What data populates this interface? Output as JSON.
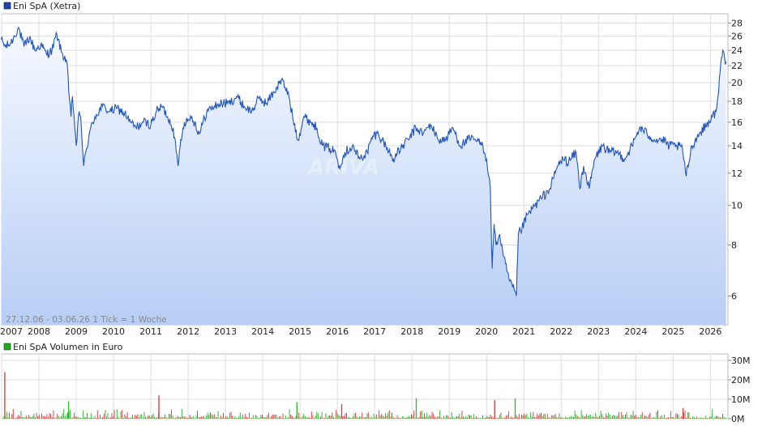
{
  "chart_data": [
    {
      "type": "line",
      "legend": "Eni SpA (Xetra)",
      "legend_color": "#2244aa",
      "line_color": "#2255bb",
      "fill_top": "#f6f9ff",
      "fill_bottom": "#b7cef5",
      "y_scale": "log",
      "ylim": [
        5.1,
        29.5
      ],
      "y_ticks": [
        "6",
        "8",
        "10",
        "12",
        "14",
        "16",
        "18",
        "20",
        "22",
        "24",
        "26",
        "28"
      ],
      "x_ticks": [
        "2007",
        "2008",
        "2009",
        "2010",
        "2011",
        "2012",
        "2013",
        "2014",
        "2015",
        "2016",
        "2017",
        "2018",
        "2019",
        "2020",
        "2021",
        "2022",
        "2023",
        "2024",
        "2025",
        "2026"
      ],
      "range_label": "27.12.06 - 03.06.26    1 Tick = 1 Woche",
      "grid": true,
      "x": [
        2006.99,
        2007.1,
        2007.25,
        2007.45,
        2007.6,
        2007.75,
        2007.9,
        2008.05,
        2008.2,
        2008.35,
        2008.48,
        2008.6,
        2008.75,
        2008.8,
        2008.86,
        2008.9,
        2009.0,
        2009.08,
        2009.12,
        2009.2,
        2009.35,
        2009.5,
        2009.7,
        2009.9,
        2010.1,
        2010.3,
        2010.45,
        2010.6,
        2010.8,
        2011.0,
        2011.15,
        2011.3,
        2011.45,
        2011.6,
        2011.68,
        2011.73,
        2011.8,
        2011.9,
        2012.1,
        2012.3,
        2012.5,
        2012.7,
        2012.9,
        2013.1,
        2013.3,
        2013.5,
        2013.7,
        2013.9,
        2014.1,
        2014.3,
        2014.5,
        2014.6,
        2014.7,
        2014.8,
        2014.95,
        2015.1,
        2015.3,
        2015.45,
        2015.6,
        2015.8,
        2015.95,
        2016.05,
        2016.2,
        2016.4,
        2016.6,
        2016.8,
        2016.95,
        2017.1,
        2017.3,
        2017.5,
        2017.7,
        2017.9,
        2018.1,
        2018.3,
        2018.5,
        2018.7,
        2018.9,
        2019.1,
        2019.3,
        2019.5,
        2019.7,
        2019.9,
        2020.0,
        2020.1,
        2020.15,
        2020.2,
        2020.25,
        2020.35,
        2020.45,
        2020.6,
        2020.7,
        2020.8,
        2020.85,
        2020.95,
        2021.1,
        2021.3,
        2021.5,
        2021.7,
        2021.9,
        2022.05,
        2022.2,
        2022.4,
        2022.5,
        2022.6,
        2022.75,
        2022.9,
        2023.1,
        2023.3,
        2023.5,
        2023.7,
        2023.9,
        2024.1,
        2024.3,
        2024.5,
        2024.7,
        2024.9,
        2025.1,
        2025.25,
        2025.35,
        2025.5,
        2025.7,
        2025.9,
        2026.05,
        2026.15,
        2026.22,
        2026.28,
        2026.33,
        2026.38,
        2026.42
      ],
      "values": [
        25.5,
        24.5,
        25.0,
        27.3,
        24.5,
        25.8,
        24.0,
        24.8,
        23.5,
        24.0,
        26.3,
        23.8,
        22.5,
        19.0,
        16.5,
        18.5,
        14.0,
        17.0,
        16.5,
        12.5,
        15.0,
        16.5,
        17.5,
        17.0,
        17.3,
        16.8,
        16.0,
        15.5,
        16.0,
        15.8,
        17.0,
        17.5,
        16.5,
        15.5,
        13.5,
        12.5,
        14.5,
        16.0,
        16.5,
        15.0,
        17.0,
        17.5,
        17.8,
        17.8,
        18.5,
        17.5,
        17.0,
        18.3,
        17.8,
        19.0,
        20.3,
        19.5,
        18.5,
        16.5,
        14.5,
        16.5,
        16.0,
        15.5,
        14.0,
        13.8,
        13.5,
        12.5,
        13.5,
        14.0,
        13.0,
        13.5,
        14.8,
        15.0,
        14.0,
        13.0,
        13.8,
        14.5,
        15.5,
        15.0,
        15.8,
        14.5,
        14.5,
        15.5,
        14.0,
        14.5,
        14.5,
        14.0,
        13.0,
        11.0,
        7.0,
        9.0,
        8.0,
        8.5,
        7.5,
        6.6,
        6.3,
        6.0,
        8.5,
        8.8,
        9.5,
        10.0,
        10.5,
        11.0,
        12.5,
        13.0,
        12.8,
        13.5,
        11.0,
        12.5,
        11.0,
        13.0,
        14.0,
        13.5,
        13.5,
        13.0,
        14.0,
        15.5,
        15.0,
        14.5,
        14.5,
        14.0,
        14.0,
        13.8,
        11.8,
        14.0,
        15.0,
        15.8,
        16.5,
        17.0,
        19.0,
        22.5,
        24.0,
        23.0,
        22.5
      ]
    },
    {
      "type": "bar",
      "legend": "Eni SpA Volumen in Euro",
      "legend_color": "#22aa22",
      "y_ticks": [
        "0M",
        "10M",
        "20M",
        "30M"
      ],
      "ylim": [
        0,
        30
      ],
      "spikes": [
        {
          "x": 2007.07,
          "value": 24.0
        },
        {
          "x": 2008.78,
          "value": 9.0
        },
        {
          "x": 2011.2,
          "value": 12.0
        },
        {
          "x": 2014.9,
          "value": 8.5
        },
        {
          "x": 2016.1,
          "value": 7.5
        },
        {
          "x": 2018.1,
          "value": 10.5
        },
        {
          "x": 2020.2,
          "value": 9.5
        },
        {
          "x": 2020.75,
          "value": 10.5
        },
        {
          "x": 2025.25,
          "value": 5.5
        }
      ],
      "baseline_range": [
        0.3,
        3.5
      ]
    }
  ]
}
